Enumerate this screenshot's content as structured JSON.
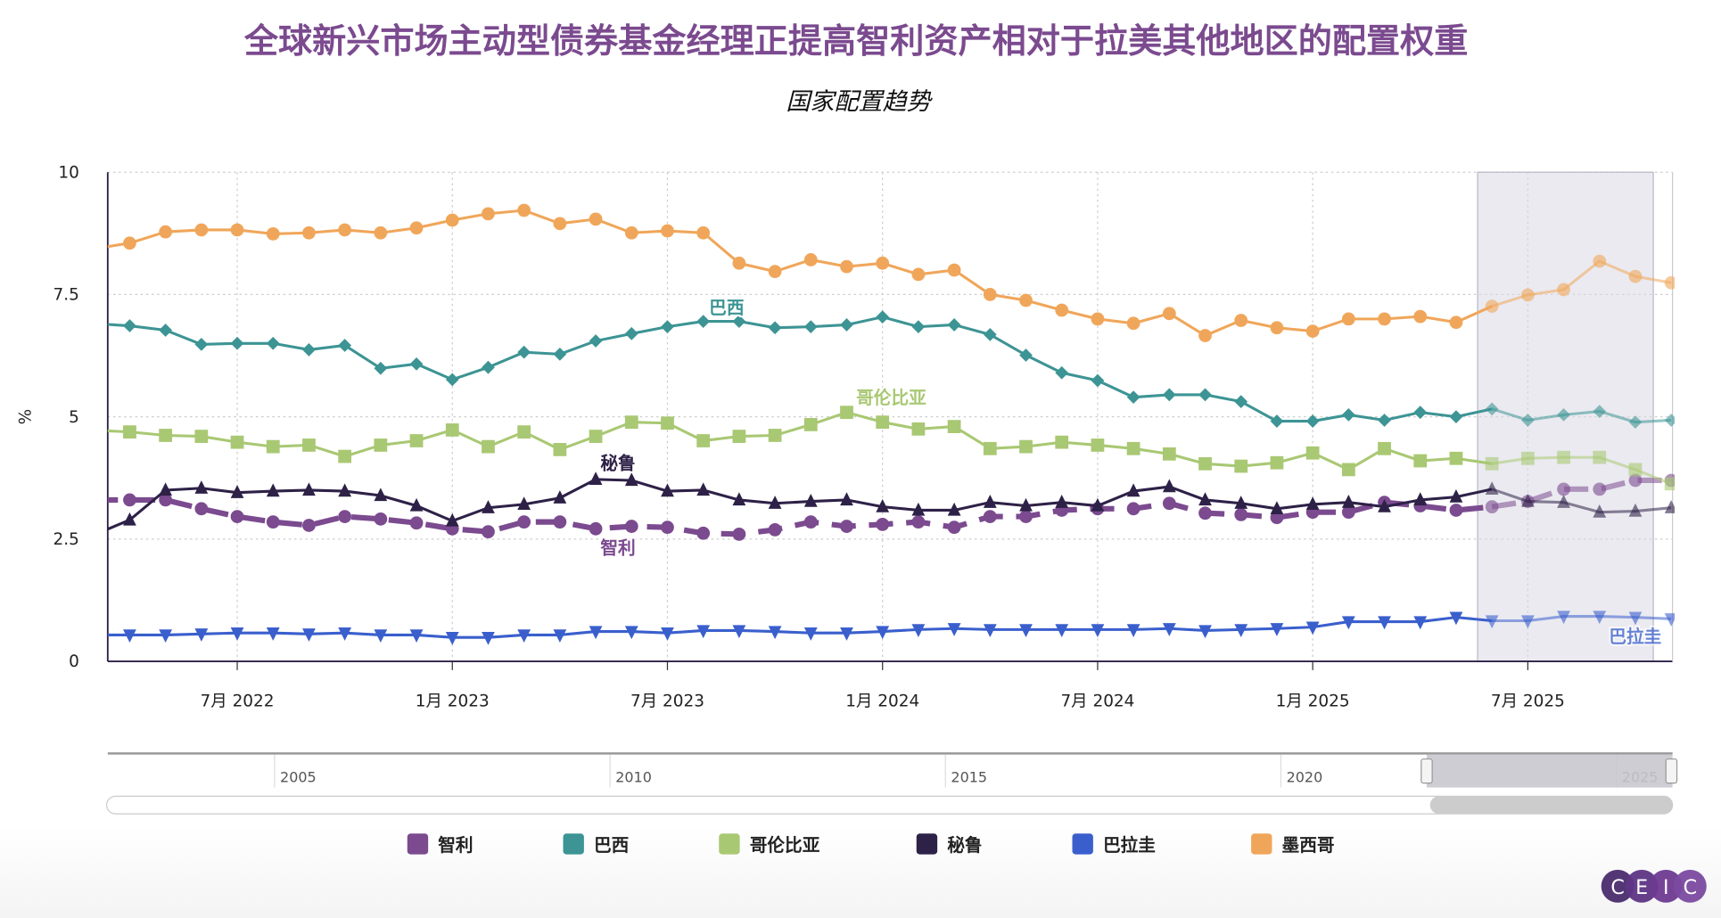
{
  "chart_data": {
    "type": "line",
    "title": "全球新兴市场主动型债券基金经理正提高智利资产相对于拉美其他地区的配置权重",
    "subtitle": "国家配置趋势",
    "ylabel": "%",
    "ylim": [
      0,
      10
    ],
    "yticks": [
      "0",
      "2.5",
      "5",
      "7.5",
      "10"
    ],
    "xticks": [
      {
        "label": "7月 2022",
        "month": 3
      },
      {
        "label": "1月 2023",
        "month": 9
      },
      {
        "label": "7月 2023",
        "month": 15
      },
      {
        "label": "1月 2024",
        "month": 21
      },
      {
        "label": "7月 2024",
        "month": 27
      },
      {
        "label": "1月 2025",
        "month": 33
      },
      {
        "label": "7月 2025",
        "month": 39
      }
    ],
    "x_start": "2022-04",
    "x_end": "2025-11",
    "grid": true,
    "highlight_range": [
      "2025-05",
      "2025-10"
    ],
    "legend_position": "bottom",
    "series": [
      {
        "name": "智利",
        "color": "#7b4a8f",
        "marker": "circle",
        "dashed": true,
        "values": [
          3.3,
          3.3,
          3.12,
          2.96,
          2.85,
          2.78,
          2.96,
          2.91,
          2.83,
          2.71,
          2.65,
          2.85,
          2.85,
          2.71,
          2.76,
          2.74,
          2.62,
          2.6,
          2.69,
          2.85,
          2.76,
          2.8,
          2.85,
          2.74,
          2.96,
          2.96,
          3.09,
          3.12,
          3.12,
          3.23,
          3.03,
          3.0,
          2.94,
          3.05,
          3.05,
          3.25,
          3.18,
          3.09,
          3.16,
          3.27,
          3.52,
          3.52,
          3.7,
          3.7
        ]
      },
      {
        "name": "巴西",
        "color": "#3d9494",
        "marker": "diamond",
        "dashed": false,
        "values": [
          6.86,
          6.77,
          6.48,
          6.5,
          6.5,
          6.37,
          6.46,
          5.99,
          6.08,
          5.76,
          6.01,
          6.32,
          6.28,
          6.55,
          6.7,
          6.84,
          6.95,
          6.95,
          6.82,
          6.84,
          6.88,
          7.04,
          6.84,
          6.88,
          6.68,
          6.26,
          5.9,
          5.74,
          5.4,
          5.45,
          5.45,
          5.31,
          4.91,
          4.91,
          5.04,
          4.93,
          5.09,
          5.0,
          5.16,
          4.93,
          5.04,
          5.11,
          4.89,
          4.93
        ]
      },
      {
        "name": "哥伦比亚",
        "color": "#a9c873",
        "marker": "square",
        "dashed": false,
        "values": [
          4.69,
          4.62,
          4.6,
          4.48,
          4.39,
          4.42,
          4.19,
          4.42,
          4.51,
          4.73,
          4.39,
          4.69,
          4.33,
          4.6,
          4.89,
          4.87,
          4.51,
          4.6,
          4.62,
          4.84,
          5.09,
          4.89,
          4.75,
          4.8,
          4.35,
          4.39,
          4.48,
          4.42,
          4.35,
          4.24,
          4.04,
          3.99,
          4.06,
          4.26,
          3.92,
          4.35,
          4.1,
          4.15,
          4.04,
          4.15,
          4.17,
          4.17,
          3.92,
          3.63
        ]
      },
      {
        "name": "秘鲁",
        "color": "#2e2147",
        "marker": "triangle-up",
        "dashed": false,
        "values": [
          2.89,
          3.5,
          3.54,
          3.45,
          3.48,
          3.5,
          3.48,
          3.39,
          3.18,
          2.87,
          3.14,
          3.21,
          3.34,
          3.72,
          3.7,
          3.48,
          3.5,
          3.3,
          3.23,
          3.27,
          3.3,
          3.16,
          3.09,
          3.09,
          3.25,
          3.18,
          3.25,
          3.18,
          3.48,
          3.57,
          3.3,
          3.23,
          3.12,
          3.21,
          3.25,
          3.16,
          3.3,
          3.36,
          3.52,
          3.27,
          3.25,
          3.05,
          3.07,
          3.14
        ]
      },
      {
        "name": "巴拉圭",
        "color": "#3a5fcd",
        "marker": "triangle-down",
        "dashed": false,
        "values": [
          0.54,
          0.54,
          0.56,
          0.58,
          0.58,
          0.56,
          0.58,
          0.54,
          0.54,
          0.49,
          0.49,
          0.54,
          0.54,
          0.61,
          0.61,
          0.58,
          0.63,
          0.63,
          0.61,
          0.58,
          0.58,
          0.61,
          0.65,
          0.67,
          0.65,
          0.65,
          0.65,
          0.65,
          0.65,
          0.67,
          0.63,
          0.65,
          0.67,
          0.7,
          0.81,
          0.81,
          0.81,
          0.9,
          0.83,
          0.83,
          0.92,
          0.92,
          0.9,
          0.87
        ]
      },
      {
        "name": "墨西哥",
        "color": "#f0a65a",
        "marker": "circle",
        "dashed": false,
        "values": [
          8.55,
          8.78,
          8.82,
          8.82,
          8.74,
          8.76,
          8.82,
          8.76,
          8.86,
          9.02,
          9.15,
          9.22,
          8.95,
          9.04,
          8.76,
          8.8,
          8.76,
          8.14,
          7.97,
          8.21,
          8.07,
          8.14,
          7.91,
          8.0,
          7.5,
          7.38,
          7.18,
          7.0,
          6.91,
          7.11,
          6.66,
          6.97,
          6.82,
          6.75,
          7.0,
          7.0,
          7.05,
          6.93,
          7.26,
          7.49,
          7.6,
          8.18,
          7.87,
          7.74
        ]
      }
    ],
    "annotations": [
      {
        "text": "巴西",
        "series": "巴西"
      },
      {
        "text": "哥伦比亚",
        "series": "哥伦比亚"
      },
      {
        "text": "秘鲁",
        "series": "秘鲁"
      },
      {
        "text": "智利",
        "series": "智利"
      },
      {
        "text": "巴拉圭",
        "series": "巴拉圭"
      }
    ]
  },
  "navigator": {
    "years": [
      "2005",
      "2010",
      "2015",
      "2020",
      "2025"
    ]
  },
  "logo": "CEIC"
}
